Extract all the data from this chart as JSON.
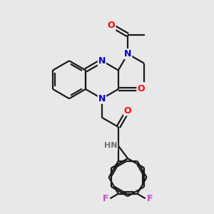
{
  "background_color": "#e8e8e8",
  "bond_color": "#1a1a1a",
  "N_color": "#0000cc",
  "O_color": "#ff0000",
  "F_color": "#cc44cc",
  "H_color": "#707070",
  "line_width": 1.6,
  "figsize": [
    3.0,
    3.0
  ],
  "dpi": 100,
  "xlim": [
    0,
    10
  ],
  "ylim": [
    0,
    10
  ]
}
